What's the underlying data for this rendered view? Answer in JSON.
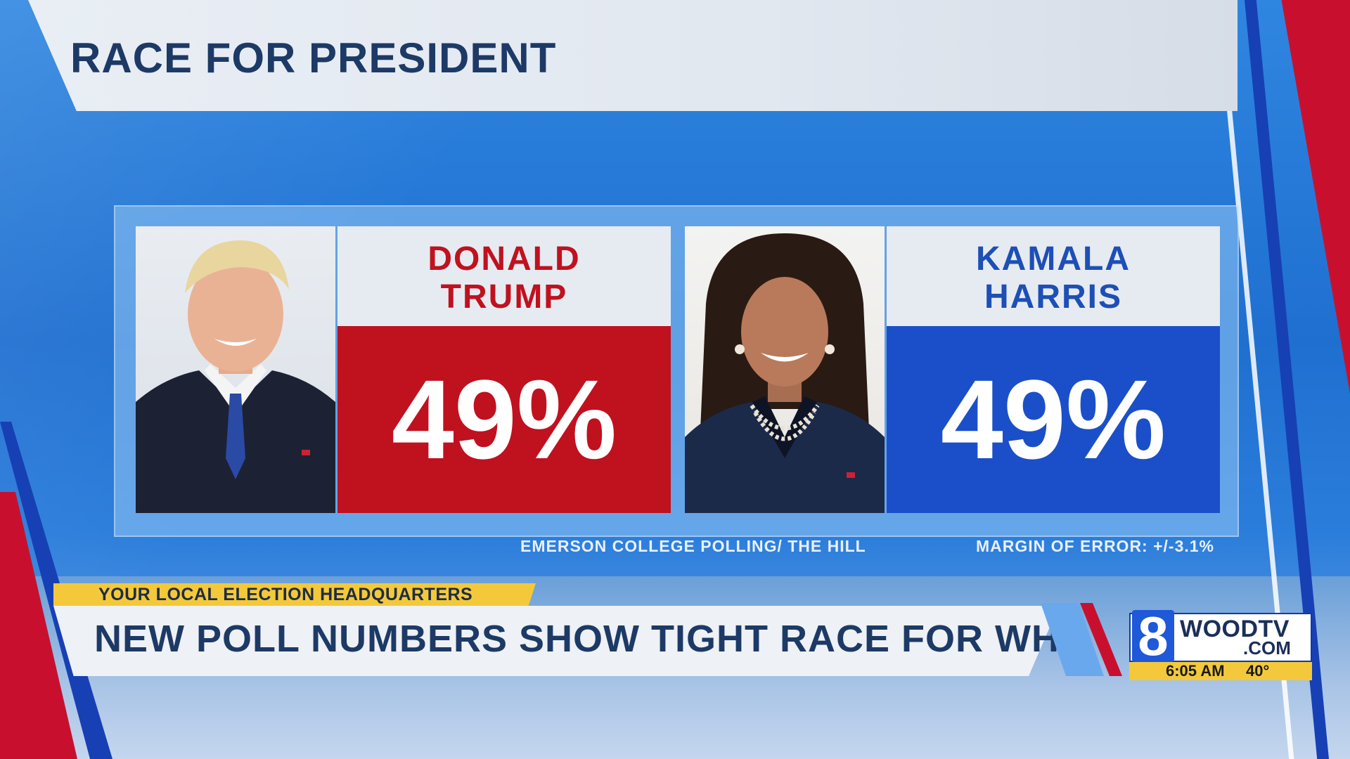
{
  "graphic": {
    "title": "RACE FOR PRESIDENT",
    "candidates": [
      {
        "first": "DONALD",
        "last": "TRUMP",
        "percent": "49%",
        "color": "#c0111f"
      },
      {
        "first": "KAMALA",
        "last": "HARRIS",
        "percent": "49%",
        "color": "#1b4fc9"
      }
    ],
    "source": "EMERSON COLLEGE POLLING/ THE HILL",
    "margin_of_error": "MARGIN OF ERROR: +/-3.1%"
  },
  "lower_third": {
    "tag": "YOUR LOCAL ELECTION HEADQUARTERS",
    "headline": "NEW POLL NUMBERS SHOW TIGHT RACE FOR WH"
  },
  "logo": {
    "channel_number": "8",
    "wordmark": "WOODTV",
    "domain": ".COM",
    "time": "6:05 AM",
    "temperature": "40°"
  }
}
